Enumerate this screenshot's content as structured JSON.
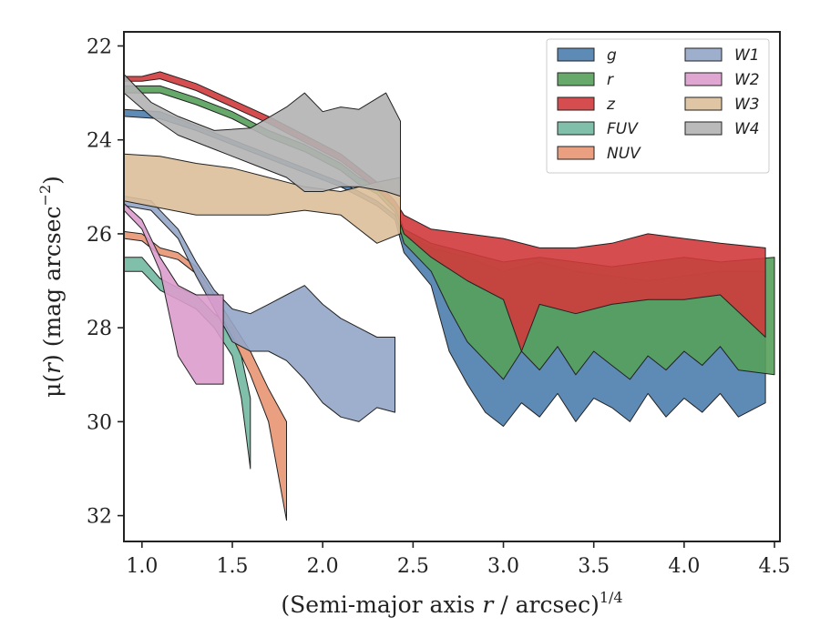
{
  "chart_data": {
    "type": "area",
    "xlabel": "(Semi-major axis r / arcsec)1/4",
    "xlabel_parts": {
      "pre": "(Semi-major axis ",
      "var": "r",
      "post": " / arcsec)",
      "sup": "1/4"
    },
    "ylabel": "μ(r) (mag arcsec−2)",
    "ylabel_parts": {
      "mu": "μ(",
      "var": "r",
      "mid": ") (mag arcsec",
      "sup": "−2",
      "end": ")"
    },
    "xlim": [
      0.9,
      4.53
    ],
    "ylim": [
      32.55,
      21.7
    ],
    "y_inverted": true,
    "xticks": [
      1.0,
      1.5,
      2.0,
      2.5,
      3.0,
      3.5,
      4.0,
      4.5
    ],
    "xtick_labels": [
      "1.0",
      "1.5",
      "2.0",
      "2.5",
      "3.0",
      "3.5",
      "4.0",
      "4.5"
    ],
    "yticks": [
      22,
      24,
      26,
      28,
      30,
      32
    ],
    "ytick_labels": [
      "22",
      "24",
      "26",
      "28",
      "30",
      "32"
    ],
    "grid": false,
    "legend_placement": "top-right",
    "series": [
      {
        "name": "g",
        "color": "#4c7dae",
        "upper": [
          [
            0.9,
            23.35
          ],
          [
            1.1,
            23.4
          ],
          [
            1.3,
            23.7
          ],
          [
            1.5,
            24.0
          ],
          [
            1.7,
            24.3
          ],
          [
            1.9,
            24.6
          ],
          [
            2.1,
            24.9
          ],
          [
            2.2,
            25.1
          ],
          [
            2.3,
            25.3
          ],
          [
            2.4,
            25.6
          ],
          [
            2.45,
            26.0
          ],
          [
            2.6,
            26.3
          ],
          [
            2.8,
            26.5
          ],
          [
            3.0,
            26.8
          ],
          [
            3.2,
            26.6
          ],
          [
            3.4,
            26.8
          ],
          [
            3.6,
            26.9
          ],
          [
            3.8,
            27.0
          ],
          [
            4.0,
            26.9
          ],
          [
            4.2,
            26.8
          ],
          [
            4.45,
            26.8
          ]
        ],
        "lower": [
          [
            0.9,
            23.5
          ],
          [
            1.1,
            23.55
          ],
          [
            1.3,
            23.8
          ],
          [
            1.5,
            24.1
          ],
          [
            1.7,
            24.4
          ],
          [
            1.9,
            24.7
          ],
          [
            2.1,
            25.0
          ],
          [
            2.2,
            25.2
          ],
          [
            2.3,
            25.4
          ],
          [
            2.4,
            25.7
          ],
          [
            2.45,
            26.4
          ],
          [
            2.6,
            27.1
          ],
          [
            2.7,
            28.5
          ],
          [
            2.8,
            29.2
          ],
          [
            2.9,
            29.8
          ],
          [
            3.0,
            30.1
          ],
          [
            3.1,
            29.6
          ],
          [
            3.2,
            29.9
          ],
          [
            3.3,
            29.4
          ],
          [
            3.4,
            30.0
          ],
          [
            3.5,
            29.5
          ],
          [
            3.6,
            29.7
          ],
          [
            3.7,
            30.0
          ],
          [
            3.8,
            29.4
          ],
          [
            3.9,
            29.9
          ],
          [
            4.0,
            29.5
          ],
          [
            4.1,
            29.8
          ],
          [
            4.2,
            29.4
          ],
          [
            4.3,
            29.9
          ],
          [
            4.45,
            29.6
          ]
        ]
      },
      {
        "name": "r",
        "color": "#55a05a",
        "upper": [
          [
            0.9,
            22.85
          ],
          [
            1.1,
            22.85
          ],
          [
            1.3,
            23.1
          ],
          [
            1.5,
            23.4
          ],
          [
            1.7,
            23.8
          ],
          [
            1.9,
            24.1
          ],
          [
            2.1,
            24.5
          ],
          [
            2.2,
            24.8
          ],
          [
            2.3,
            25.0
          ],
          [
            2.4,
            25.4
          ],
          [
            2.45,
            25.9
          ],
          [
            2.6,
            26.2
          ],
          [
            2.8,
            26.4
          ],
          [
            3.0,
            26.6
          ],
          [
            3.2,
            26.5
          ],
          [
            3.4,
            26.6
          ],
          [
            3.6,
            26.7
          ],
          [
            3.8,
            26.6
          ],
          [
            4.0,
            26.5
          ],
          [
            4.2,
            26.6
          ],
          [
            4.5,
            26.5
          ]
        ],
        "lower": [
          [
            0.9,
            23.0
          ],
          [
            1.1,
            23.0
          ],
          [
            1.3,
            23.25
          ],
          [
            1.5,
            23.55
          ],
          [
            1.7,
            23.95
          ],
          [
            1.9,
            24.25
          ],
          [
            2.1,
            24.65
          ],
          [
            2.2,
            24.95
          ],
          [
            2.3,
            25.15
          ],
          [
            2.4,
            25.55
          ],
          [
            2.45,
            26.2
          ],
          [
            2.6,
            26.8
          ],
          [
            2.7,
            27.6
          ],
          [
            2.8,
            28.3
          ],
          [
            2.9,
            28.7
          ],
          [
            3.0,
            29.1
          ],
          [
            3.1,
            28.5
          ],
          [
            3.2,
            28.9
          ],
          [
            3.3,
            28.4
          ],
          [
            3.4,
            29.0
          ],
          [
            3.5,
            28.5
          ],
          [
            3.6,
            28.8
          ],
          [
            3.7,
            29.1
          ],
          [
            3.8,
            28.6
          ],
          [
            3.9,
            28.9
          ],
          [
            4.0,
            28.5
          ],
          [
            4.1,
            28.8
          ],
          [
            4.2,
            28.4
          ],
          [
            4.3,
            28.9
          ],
          [
            4.5,
            29.0
          ]
        ]
      },
      {
        "name": "z",
        "color": "#d03a3c",
        "upper": [
          [
            0.9,
            22.65
          ],
          [
            1.0,
            22.65
          ],
          [
            1.1,
            22.55
          ],
          [
            1.3,
            22.8
          ],
          [
            1.5,
            23.15
          ],
          [
            1.7,
            23.5
          ],
          [
            1.9,
            23.9
          ],
          [
            2.1,
            24.3
          ],
          [
            2.2,
            24.6
          ],
          [
            2.3,
            24.9
          ],
          [
            2.4,
            25.3
          ],
          [
            2.45,
            25.6
          ],
          [
            2.6,
            25.9
          ],
          [
            2.8,
            26.0
          ],
          [
            3.0,
            26.1
          ],
          [
            3.2,
            26.3
          ],
          [
            3.4,
            26.3
          ],
          [
            3.6,
            26.2
          ],
          [
            3.8,
            26.0
          ],
          [
            4.0,
            26.1
          ],
          [
            4.2,
            26.2
          ],
          [
            4.45,
            26.3
          ]
        ],
        "lower": [
          [
            0.9,
            22.75
          ],
          [
            1.0,
            22.75
          ],
          [
            1.1,
            22.7
          ],
          [
            1.3,
            22.95
          ],
          [
            1.5,
            23.3
          ],
          [
            1.7,
            23.65
          ],
          [
            1.9,
            24.05
          ],
          [
            2.1,
            24.45
          ],
          [
            2.2,
            24.75
          ],
          [
            2.3,
            25.05
          ],
          [
            2.4,
            25.45
          ],
          [
            2.45,
            26.0
          ],
          [
            2.6,
            26.5
          ],
          [
            2.8,
            27.0
          ],
          [
            3.0,
            27.4
          ],
          [
            3.1,
            28.5
          ],
          [
            3.2,
            27.5
          ],
          [
            3.4,
            27.7
          ],
          [
            3.6,
            27.5
          ],
          [
            3.8,
            27.4
          ],
          [
            4.0,
            27.4
          ],
          [
            4.2,
            27.3
          ],
          [
            4.45,
            28.2
          ]
        ]
      },
      {
        "name": "FUV",
        "color": "#72b8a0",
        "upper": [
          [
            0.9,
            26.5
          ],
          [
            1.0,
            26.5
          ],
          [
            1.1,
            26.95
          ],
          [
            1.2,
            27.15
          ],
          [
            1.3,
            27.3
          ],
          [
            1.4,
            27.7
          ],
          [
            1.5,
            28.0
          ],
          [
            1.55,
            28.6
          ],
          [
            1.6,
            29.5
          ]
        ],
        "lower": [
          [
            0.9,
            26.8
          ],
          [
            1.0,
            26.8
          ],
          [
            1.1,
            27.2
          ],
          [
            1.2,
            27.4
          ],
          [
            1.3,
            27.6
          ],
          [
            1.4,
            28.0
          ],
          [
            1.5,
            28.6
          ],
          [
            1.55,
            29.5
          ],
          [
            1.6,
            31.0
          ]
        ]
      },
      {
        "name": "NUV",
        "color": "#e89572",
        "upper": [
          [
            0.9,
            25.95
          ],
          [
            1.0,
            26.0
          ],
          [
            1.1,
            26.3
          ],
          [
            1.2,
            26.4
          ],
          [
            1.3,
            26.7
          ],
          [
            1.4,
            27.3
          ],
          [
            1.5,
            27.9
          ],
          [
            1.6,
            28.5
          ],
          [
            1.7,
            29.3
          ],
          [
            1.8,
            30.0
          ]
        ],
        "lower": [
          [
            0.9,
            26.1
          ],
          [
            1.0,
            26.15
          ],
          [
            1.1,
            26.45
          ],
          [
            1.2,
            26.55
          ],
          [
            1.3,
            26.85
          ],
          [
            1.4,
            27.5
          ],
          [
            1.5,
            28.2
          ],
          [
            1.6,
            29.0
          ],
          [
            1.7,
            30.0
          ],
          [
            1.8,
            32.1
          ]
        ]
      },
      {
        "name": "W1",
        "color": "#94a5c8",
        "upper": [
          [
            0.9,
            25.2
          ],
          [
            1.05,
            25.3
          ],
          [
            1.2,
            25.9
          ],
          [
            1.3,
            26.6
          ],
          [
            1.4,
            27.2
          ],
          [
            1.5,
            27.6
          ],
          [
            1.6,
            27.7
          ],
          [
            1.7,
            27.5
          ],
          [
            1.8,
            27.3
          ],
          [
            1.9,
            27.1
          ],
          [
            2.0,
            27.5
          ],
          [
            2.1,
            27.8
          ],
          [
            2.2,
            28.0
          ],
          [
            2.3,
            28.2
          ],
          [
            2.4,
            28.2
          ]
        ],
        "lower": [
          [
            0.9,
            25.4
          ],
          [
            1.05,
            25.5
          ],
          [
            1.2,
            26.1
          ],
          [
            1.3,
            26.9
          ],
          [
            1.4,
            27.6
          ],
          [
            1.5,
            28.3
          ],
          [
            1.6,
            28.5
          ],
          [
            1.7,
            28.5
          ],
          [
            1.8,
            28.7
          ],
          [
            1.9,
            29.1
          ],
          [
            2.0,
            29.6
          ],
          [
            2.1,
            29.9
          ],
          [
            2.2,
            30.0
          ],
          [
            2.3,
            29.7
          ],
          [
            2.4,
            29.8
          ]
        ]
      },
      {
        "name": "W2",
        "color": "#dc9ccc",
        "upper": [
          [
            0.9,
            25.35
          ],
          [
            1.0,
            25.7
          ],
          [
            1.1,
            26.5
          ],
          [
            1.2,
            27.1
          ],
          [
            1.3,
            27.3
          ],
          [
            1.45,
            27.3
          ]
        ],
        "lower": [
          [
            0.9,
            25.5
          ],
          [
            1.0,
            25.9
          ],
          [
            1.1,
            26.8
          ],
          [
            1.2,
            28.6
          ],
          [
            1.3,
            29.2
          ],
          [
            1.45,
            29.2
          ]
        ]
      },
      {
        "name": "W3",
        "color": "#dcbf9a",
        "upper": [
          [
            0.9,
            24.3
          ],
          [
            1.1,
            24.35
          ],
          [
            1.3,
            24.5
          ],
          [
            1.5,
            24.6
          ],
          [
            1.7,
            24.8
          ],
          [
            1.9,
            25.0
          ],
          [
            2.1,
            25.1
          ],
          [
            2.3,
            24.9
          ],
          [
            2.43,
            24.8
          ]
        ],
        "lower": [
          [
            0.9,
            25.3
          ],
          [
            1.1,
            25.45
          ],
          [
            1.3,
            25.6
          ],
          [
            1.5,
            25.6
          ],
          [
            1.7,
            25.6
          ],
          [
            1.9,
            25.5
          ],
          [
            2.1,
            25.6
          ],
          [
            2.3,
            26.2
          ],
          [
            2.43,
            26.0
          ]
        ]
      },
      {
        "name": "W4",
        "color": "#b3b3b3",
        "upper": [
          [
            0.9,
            22.6
          ],
          [
            1.05,
            23.2
          ],
          [
            1.2,
            23.5
          ],
          [
            1.4,
            23.8
          ],
          [
            1.6,
            23.75
          ],
          [
            1.8,
            23.3
          ],
          [
            1.9,
            23.0
          ],
          [
            2.0,
            23.4
          ],
          [
            2.1,
            23.3
          ],
          [
            2.2,
            23.35
          ],
          [
            2.35,
            23.0
          ],
          [
            2.43,
            23.6
          ]
        ],
        "lower": [
          [
            0.9,
            23.0
          ],
          [
            1.05,
            23.5
          ],
          [
            1.2,
            23.9
          ],
          [
            1.4,
            24.2
          ],
          [
            1.6,
            24.5
          ],
          [
            1.8,
            24.8
          ],
          [
            1.9,
            25.1
          ],
          [
            2.0,
            25.1
          ],
          [
            2.1,
            25.0
          ],
          [
            2.2,
            25.0
          ],
          [
            2.35,
            25.1
          ],
          [
            2.43,
            25.2
          ]
        ]
      }
    ]
  }
}
